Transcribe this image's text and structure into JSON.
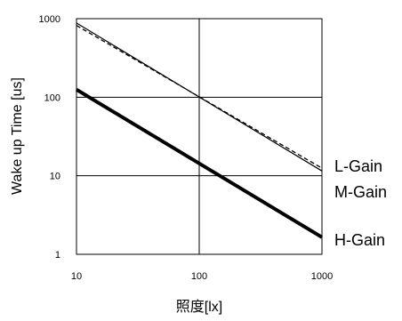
{
  "chart_data": {
    "type": "line",
    "xscale": "log",
    "yscale": "log",
    "xlim": [
      10,
      1000
    ],
    "ylim": [
      1,
      1000
    ],
    "xlabel": "照度[lx]",
    "ylabel": "Wake up Time [us]",
    "grid": true,
    "x_ticks": [
      "10",
      "100",
      "1000"
    ],
    "y_ticks": [
      "1",
      "10",
      "100",
      "1000"
    ],
    "series": [
      {
        "name": "L-Gain",
        "x": [
          10,
          1000
        ],
        "y": [
          880,
          11.5
        ],
        "style": "solid-thin",
        "color": "#000000"
      },
      {
        "name": "M-Gain",
        "x": [
          10,
          1000
        ],
        "y": [
          820,
          12.5
        ],
        "style": "dashed-thin",
        "color": "#000000"
      },
      {
        "name": "H-Gain",
        "x": [
          10,
          1000
        ],
        "y": [
          125,
          1.65
        ],
        "style": "solid-thick",
        "color": "#000000"
      }
    ]
  }
}
